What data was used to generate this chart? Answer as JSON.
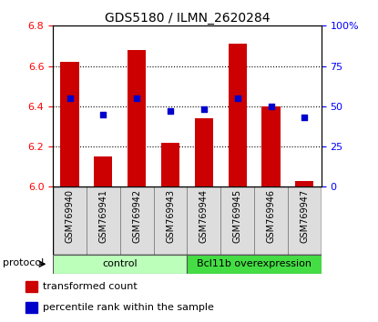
{
  "title": "GDS5180 / ILMN_2620284",
  "samples": [
    "GSM769940",
    "GSM769941",
    "GSM769942",
    "GSM769943",
    "GSM769944",
    "GSM769945",
    "GSM769946",
    "GSM769947"
  ],
  "transformed_count": [
    6.62,
    6.15,
    6.68,
    6.22,
    6.34,
    6.71,
    6.4,
    6.03
  ],
  "percentile_rank": [
    55,
    45,
    55,
    47,
    48,
    55,
    50,
    43
  ],
  "ylim_left": [
    6.0,
    6.8
  ],
  "ylim_right": [
    0,
    100
  ],
  "yticks_left": [
    6.0,
    6.2,
    6.4,
    6.6,
    6.8
  ],
  "yticks_right": [
    0,
    25,
    50,
    75,
    100
  ],
  "ytick_labels_right": [
    "0",
    "25",
    "50",
    "75",
    "100%"
  ],
  "bar_color": "#cc0000",
  "dot_color": "#0000cc",
  "bar_width": 0.55,
  "bar_bottom": 6.0,
  "groups": [
    {
      "label": "control",
      "start": 0,
      "end": 3,
      "color": "#bbffbb"
    },
    {
      "label": "Bcl11b overexpression",
      "start": 4,
      "end": 7,
      "color": "#44dd44"
    }
  ],
  "protocol_label": "protocol",
  "legend_items": [
    {
      "label": "transformed count",
      "color": "#cc0000"
    },
    {
      "label": "percentile rank within the sample",
      "color": "#0000cc"
    }
  ],
  "title_fontsize": 10,
  "tick_fontsize": 8,
  "sample_fontsize": 7
}
